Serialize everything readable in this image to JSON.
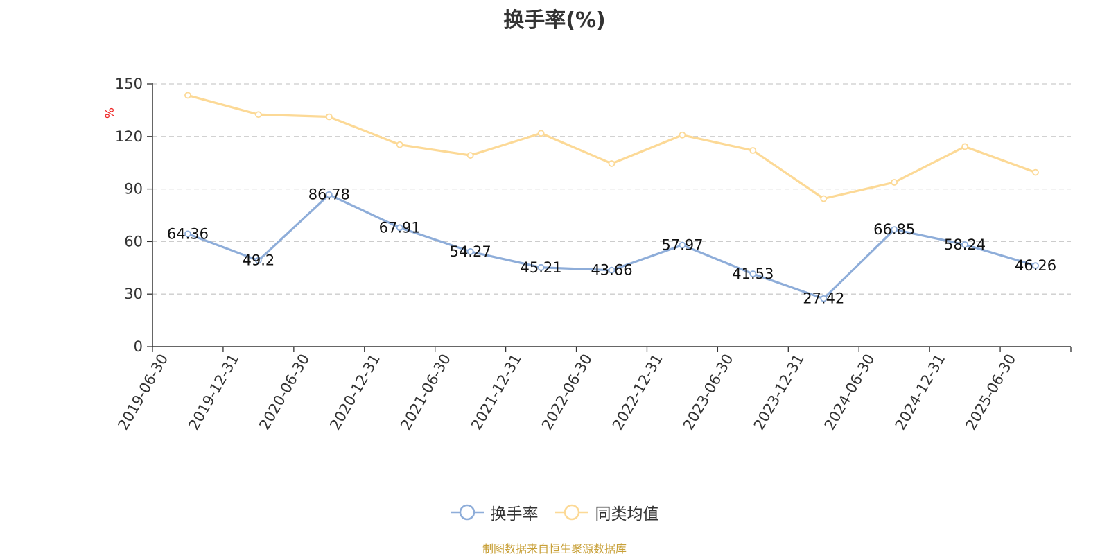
{
  "chart_data": {
    "type": "line",
    "title": "换手率(%)",
    "ylabel": "%",
    "ylim": [
      0,
      150
    ],
    "yticks": [
      0,
      30,
      60,
      90,
      120,
      150
    ],
    "grid": true,
    "legend_position": "bottom",
    "categories": [
      "2019-06-30",
      "2019-12-31",
      "2020-06-30",
      "2020-12-31",
      "2021-06-30",
      "2021-12-31",
      "2022-06-30",
      "2022-12-31",
      "2023-06-30",
      "2023-12-31",
      "2024-06-30",
      "2024-12-31",
      "2025-06-30"
    ],
    "series": [
      {
        "name": "换手率",
        "color": "#8eadd9",
        "values": [
          64.36,
          49.2,
          86.78,
          67.91,
          54.27,
          45.21,
          43.66,
          57.97,
          41.53,
          27.42,
          66.85,
          58.24,
          46.26
        ],
        "labels": [
          "64.36",
          "49.2",
          "86.78",
          "67.91",
          "54.27",
          "45.21",
          "43.66",
          "57.97",
          "41.53",
          "27.42",
          "66.85",
          "58.24",
          "46.26"
        ]
      },
      {
        "name": "同类均值",
        "color": "#fcd996",
        "values": [
          143.5,
          132.5,
          131.2,
          115.3,
          109.2,
          121.8,
          104.5,
          120.8,
          112.0,
          84.5,
          93.8,
          114.2,
          99.5
        ]
      }
    ]
  },
  "source_note": "制图数据来自恒生聚源数据库",
  "colors": {
    "unit_label": "#ee2222",
    "source_note": "#c8a038",
    "grid": "#cccccc",
    "axis": "#333333"
  }
}
